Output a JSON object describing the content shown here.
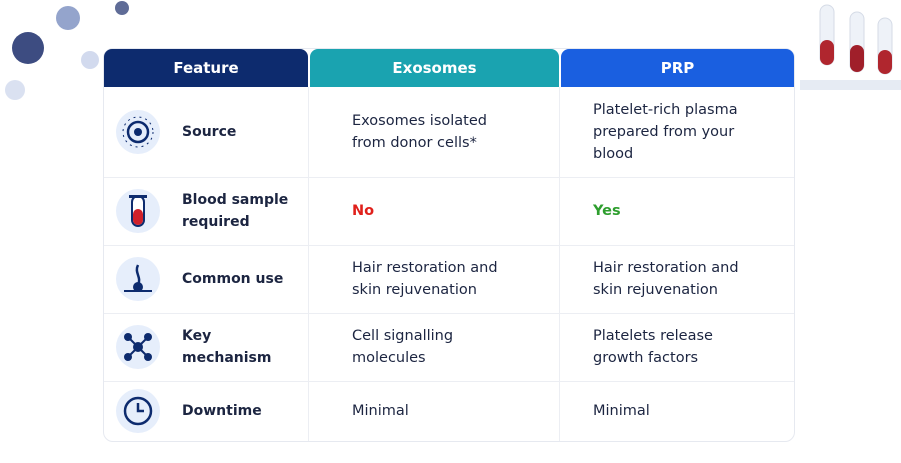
{
  "table": {
    "headers": [
      "Feature",
      "Exosomes",
      "PRP"
    ],
    "rows": [
      [
        "Source",
        "Exosomes isolated from donor cells*",
        "Platelet-rich plasma prepared from your blood"
      ],
      [
        "Blood sample required",
        "No",
        "Yes"
      ],
      [
        "Common use",
        "Hair restoration and skin rejuvenation",
        "Hair restoration and skin rejuvenation"
      ],
      [
        "Key mechanism",
        "Cell signalling molecules",
        "Platelets release growth factors"
      ],
      [
        "Downtime",
        "Minimal",
        "Minimal"
      ]
    ]
  }
}
